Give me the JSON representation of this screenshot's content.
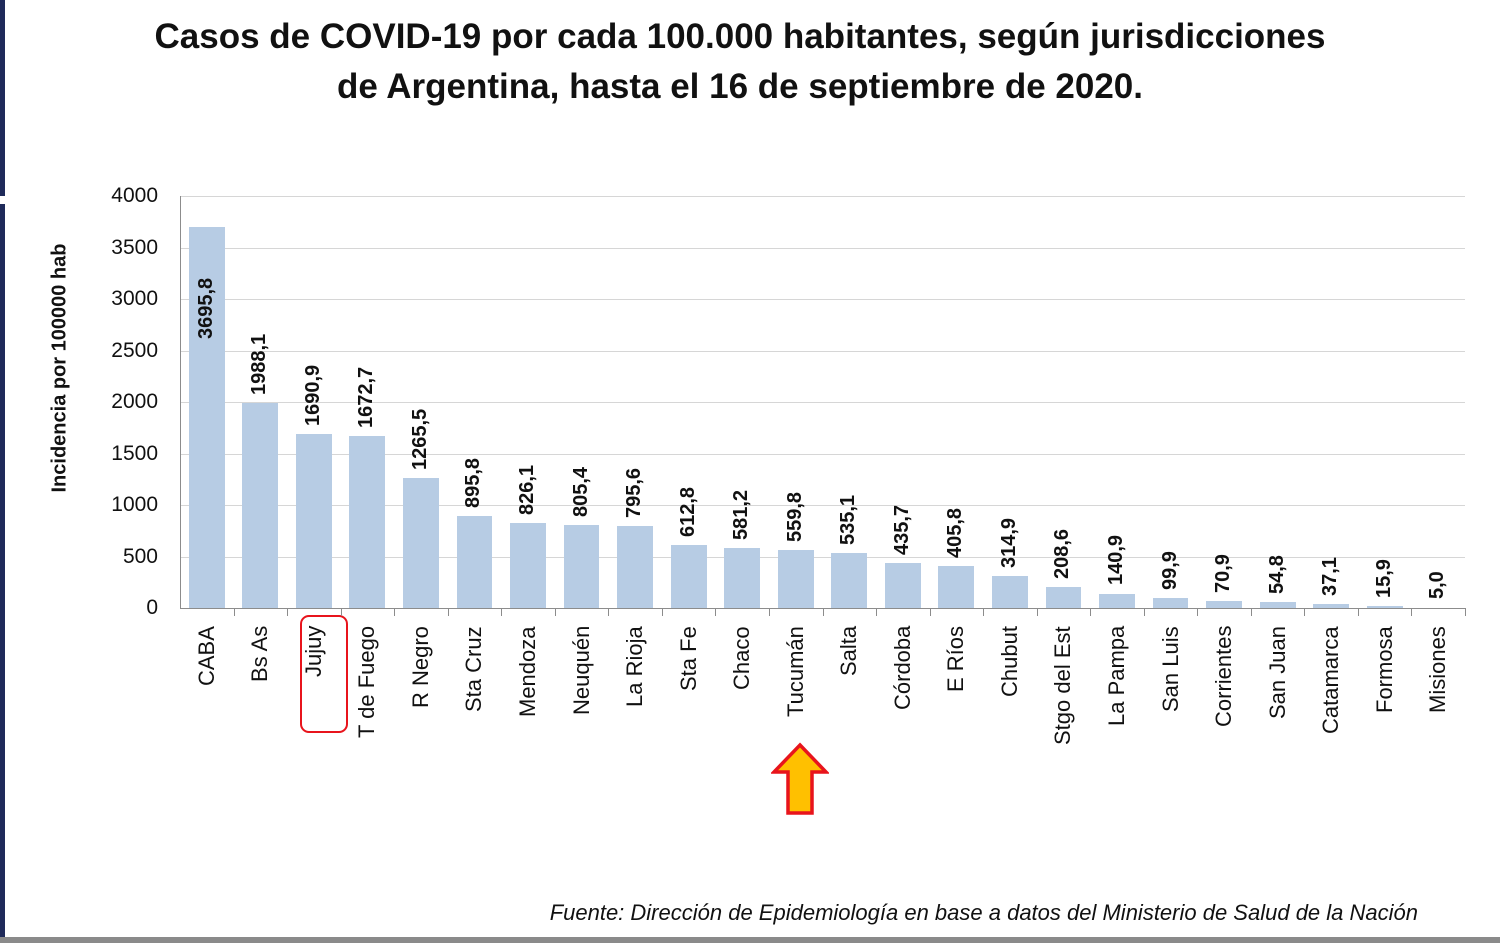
{
  "title_line1": "Casos de COVID-19 por cada 100.000 habitantes, según jurisdicciones",
  "title_line2": "de Argentina, hasta el 16 de septiembre de 2020.",
  "source": "Fuente: Dirección de Epidemiología en base a datos del Ministerio de Salud de la Nación",
  "annotations": {
    "highlight_box": {
      "category": "Jujuy",
      "color": "#e8141c"
    },
    "arrow": {
      "category": "Tucumán",
      "fill": "#ffc000",
      "stroke": "#e8141c",
      "icon": "up-arrow-icon"
    }
  },
  "colors": {
    "bar": "#b7cce4",
    "grid": "#d6d6d6"
  },
  "chart_data": {
    "type": "bar",
    "title": "Casos de COVID-19 por cada 100.000 habitantes, según jurisdicciones de Argentina, hasta el 16 de septiembre de 2020.",
    "xlabel": "",
    "ylabel": "Incidencia por 100000 hab",
    "ylim": [
      0,
      4000
    ],
    "yticks": [
      "0",
      "500",
      "1000",
      "1500",
      "2000",
      "2500",
      "3000",
      "3500",
      "4000"
    ],
    "grid": true,
    "legend": null,
    "categories": [
      "CABA",
      "Bs As",
      "Jujuy",
      "T de Fuego",
      "R Negro",
      "Sta Cruz",
      "Mendoza",
      "Neuquén",
      "La Rioja",
      "Sta Fe",
      "Chaco",
      "Tucumán",
      "Salta",
      "Córdoba",
      "E Ríos",
      "Chubut",
      "Stgo del Est",
      "La Pampa",
      "San Luis",
      "Corrientes",
      "San Juan",
      "Catamarca",
      "Formosa",
      "Misiones"
    ],
    "values": [
      3695.8,
      1988.1,
      1690.9,
      1672.7,
      1265.5,
      895.8,
      826.1,
      805.4,
      795.6,
      612.8,
      581.2,
      559.8,
      535.1,
      435.7,
      405.8,
      314.9,
      208.6,
      140.9,
      99.9,
      70.9,
      54.8,
      37.1,
      15.9,
      5.0
    ],
    "value_labels": [
      "3695,8",
      "1988,1",
      "1690,9",
      "1672,7",
      "1265,5",
      "895,8",
      "826,1",
      "805,4",
      "795,6",
      "612,8",
      "581,2",
      "559,8",
      "535,1",
      "435,7",
      "405,8",
      "314,9",
      "208,6",
      "140,9",
      "99,9",
      "70,9",
      "54,8",
      "37,1",
      "15,9",
      "5,0"
    ],
    "source": "Fuente: Dirección de Epidemiología en base a datos del Ministerio de Salud de la Nación"
  }
}
